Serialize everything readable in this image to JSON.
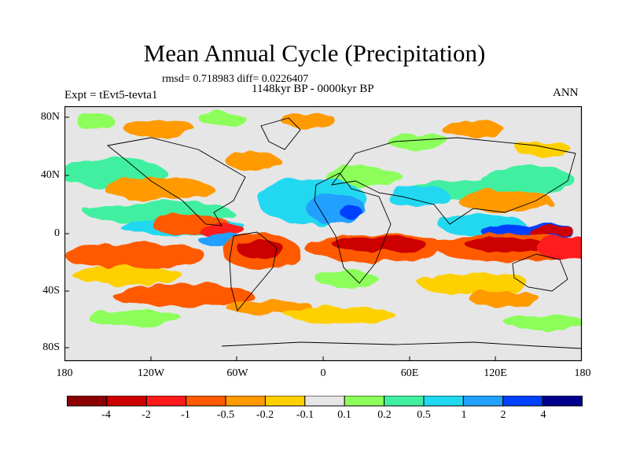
{
  "title": "Mean Annual Cycle (Precipitation)",
  "stats_line": "rmsd= 0.718983  diff= 0.0226407",
  "period_label": "1148kyr BP - 0000kyr BP",
  "experiment_label": "Expt = tEvt5-tevta1",
  "season_label": "ANN",
  "map": {
    "y_axis_labels": [
      "80N",
      "40N",
      "0",
      "40S",
      "80S"
    ],
    "x_axis_labels": [
      "180",
      "120W",
      "60W",
      "0",
      "60E",
      "120E",
      "180"
    ]
  },
  "colorbar": {
    "colors": [
      "#8b0000",
      "#cc0000",
      "#ff1a1a",
      "#ff5a00",
      "#ff9a00",
      "#ffd000",
      "#e6e6e6",
      "#8cff5a",
      "#40f0a0",
      "#20d8f0",
      "#20a0ff",
      "#0040ff",
      "#00008c"
    ],
    "labels": [
      "-4",
      "-2",
      "-1",
      "-0.5",
      "-0.2",
      "-0.1",
      "0.1",
      "0.2",
      "0.5",
      "1",
      "2",
      "4"
    ]
  }
}
